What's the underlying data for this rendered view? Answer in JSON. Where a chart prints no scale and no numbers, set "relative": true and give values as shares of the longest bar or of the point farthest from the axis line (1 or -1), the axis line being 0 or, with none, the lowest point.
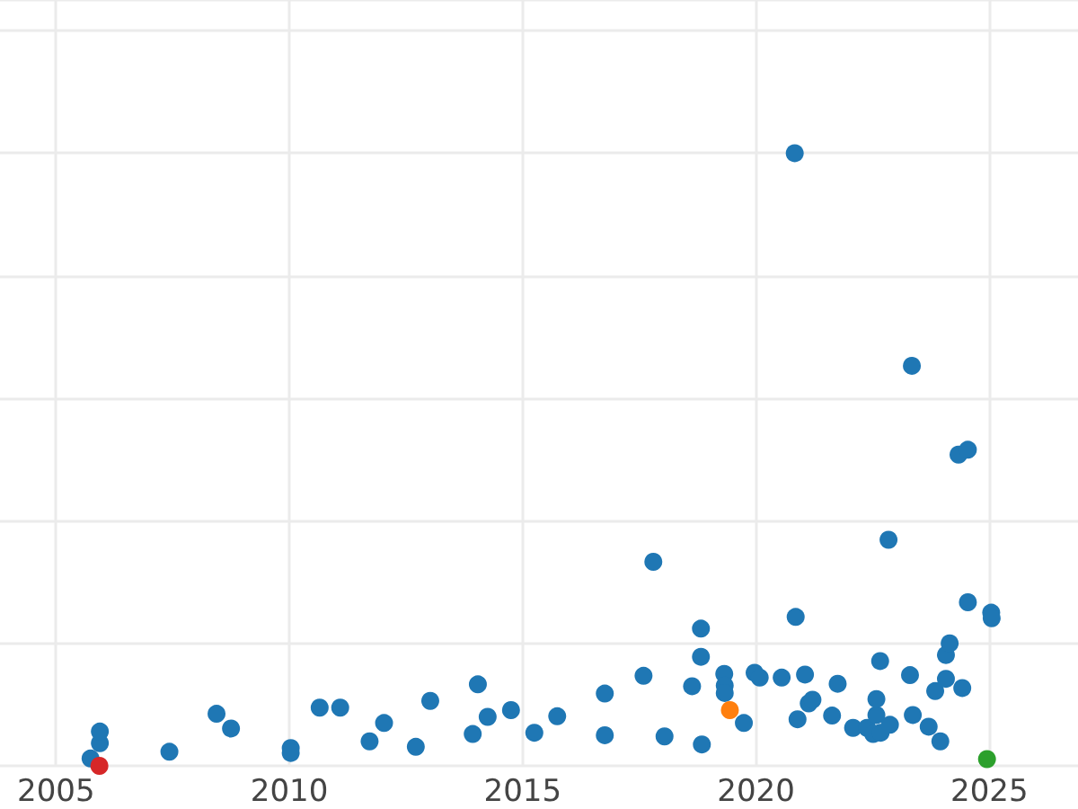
{
  "chart_data": {
    "type": "scatter",
    "relative": true,
    "marker": "circle",
    "grid": true,
    "xlim": [
      2003.8,
      2026.9
    ],
    "xticks": [
      2005,
      2010,
      2015,
      2020,
      2025
    ],
    "x": [
      2005.74,
      2005.93,
      2005.94,
      2005.94,
      2007.43,
      2008.44,
      2008.75,
      2010.03,
      2010.03,
      2010.65,
      2011.09,
      2011.72,
      2012.03,
      2012.71,
      2013.02,
      2013.93,
      2014.04,
      2014.25,
      2014.75,
      2015.25,
      2015.74,
      2016.76,
      2016.76,
      2017.59,
      2017.8,
      2018.04,
      2018.63,
      2018.82,
      2018.82,
      2018.84,
      2019.32,
      2019.33,
      2019.33,
      2019.44,
      2019.74,
      2019.97,
      2020.08,
      2020.55,
      2020.83,
      2020.85,
      2020.89,
      2021.05,
      2021.13,
      2021.21,
      2021.63,
      2021.75,
      2022.08,
      2022.38,
      2022.51,
      2022.67,
      2022.58,
      2022.58,
      2022.66,
      2022.87,
      2022.84,
      2023.3,
      2023.34,
      2023.36,
      2023.7,
      2023.84,
      2023.95,
      2024.07,
      2024.07,
      2024.15,
      2024.34,
      2024.42,
      2024.54,
      2024.54,
      2025.04,
      2025.05,
      2024.95
    ],
    "values": [
      0.012,
      0,
      0.037,
      0.056,
      0.023,
      0.085,
      0.061,
      0.029,
      0.021,
      0.095,
      0.095,
      0.04,
      0.07,
      0.031,
      0.106,
      0.052,
      0.133,
      0.08,
      0.091,
      0.054,
      0.081,
      0.118,
      0.05,
      0.147,
      0.333,
      0.048,
      0.13,
      0.224,
      0.178,
      0.035,
      0.15,
      0.131,
      0.119,
      0.091,
      0.07,
      0.152,
      0.144,
      0.144,
      1,
      0.243,
      0.076,
      0.149,
      0.102,
      0.108,
      0.082,
      0.134,
      0.062,
      0.062,
      0.052,
      0.054,
      0.083,
      0.109,
      0.171,
      0.067,
      0.369,
      0.148,
      0.653,
      0.083,
      0.064,
      0.122,
      0.04,
      0.142,
      0.181,
      0.2,
      0.508,
      0.127,
      0.516,
      0.267,
      0.25,
      0.241,
      0.011
    ],
    "colors": [
      "#1f77b4",
      "#d62728",
      "#1f77b4",
      "#1f77b4",
      "#1f77b4",
      "#1f77b4",
      "#1f77b4",
      "#1f77b4",
      "#1f77b4",
      "#1f77b4",
      "#1f77b4",
      "#1f77b4",
      "#1f77b4",
      "#1f77b4",
      "#1f77b4",
      "#1f77b4",
      "#1f77b4",
      "#1f77b4",
      "#1f77b4",
      "#1f77b4",
      "#1f77b4",
      "#1f77b4",
      "#1f77b4",
      "#1f77b4",
      "#1f77b4",
      "#1f77b4",
      "#1f77b4",
      "#1f77b4",
      "#1f77b4",
      "#1f77b4",
      "#1f77b4",
      "#1f77b4",
      "#1f77b4",
      "#ff7f0e",
      "#1f77b4",
      "#1f77b4",
      "#1f77b4",
      "#1f77b4",
      "#1f77b4",
      "#1f77b4",
      "#1f77b4",
      "#1f77b4",
      "#1f77b4",
      "#1f77b4",
      "#1f77b4",
      "#1f77b4",
      "#1f77b4",
      "#1f77b4",
      "#1f77b4",
      "#1f77b4",
      "#1f77b4",
      "#1f77b4",
      "#1f77b4",
      "#1f77b4",
      "#1f77b4",
      "#1f77b4",
      "#1f77b4",
      "#1f77b4",
      "#1f77b4",
      "#1f77b4",
      "#1f77b4",
      "#1f77b4",
      "#1f77b4",
      "#1f77b4",
      "#1f77b4",
      "#1f77b4",
      "#1f77b4",
      "#1f77b4",
      "#1f77b4",
      "#1f77b4",
      "#2ca02c"
    ]
  }
}
